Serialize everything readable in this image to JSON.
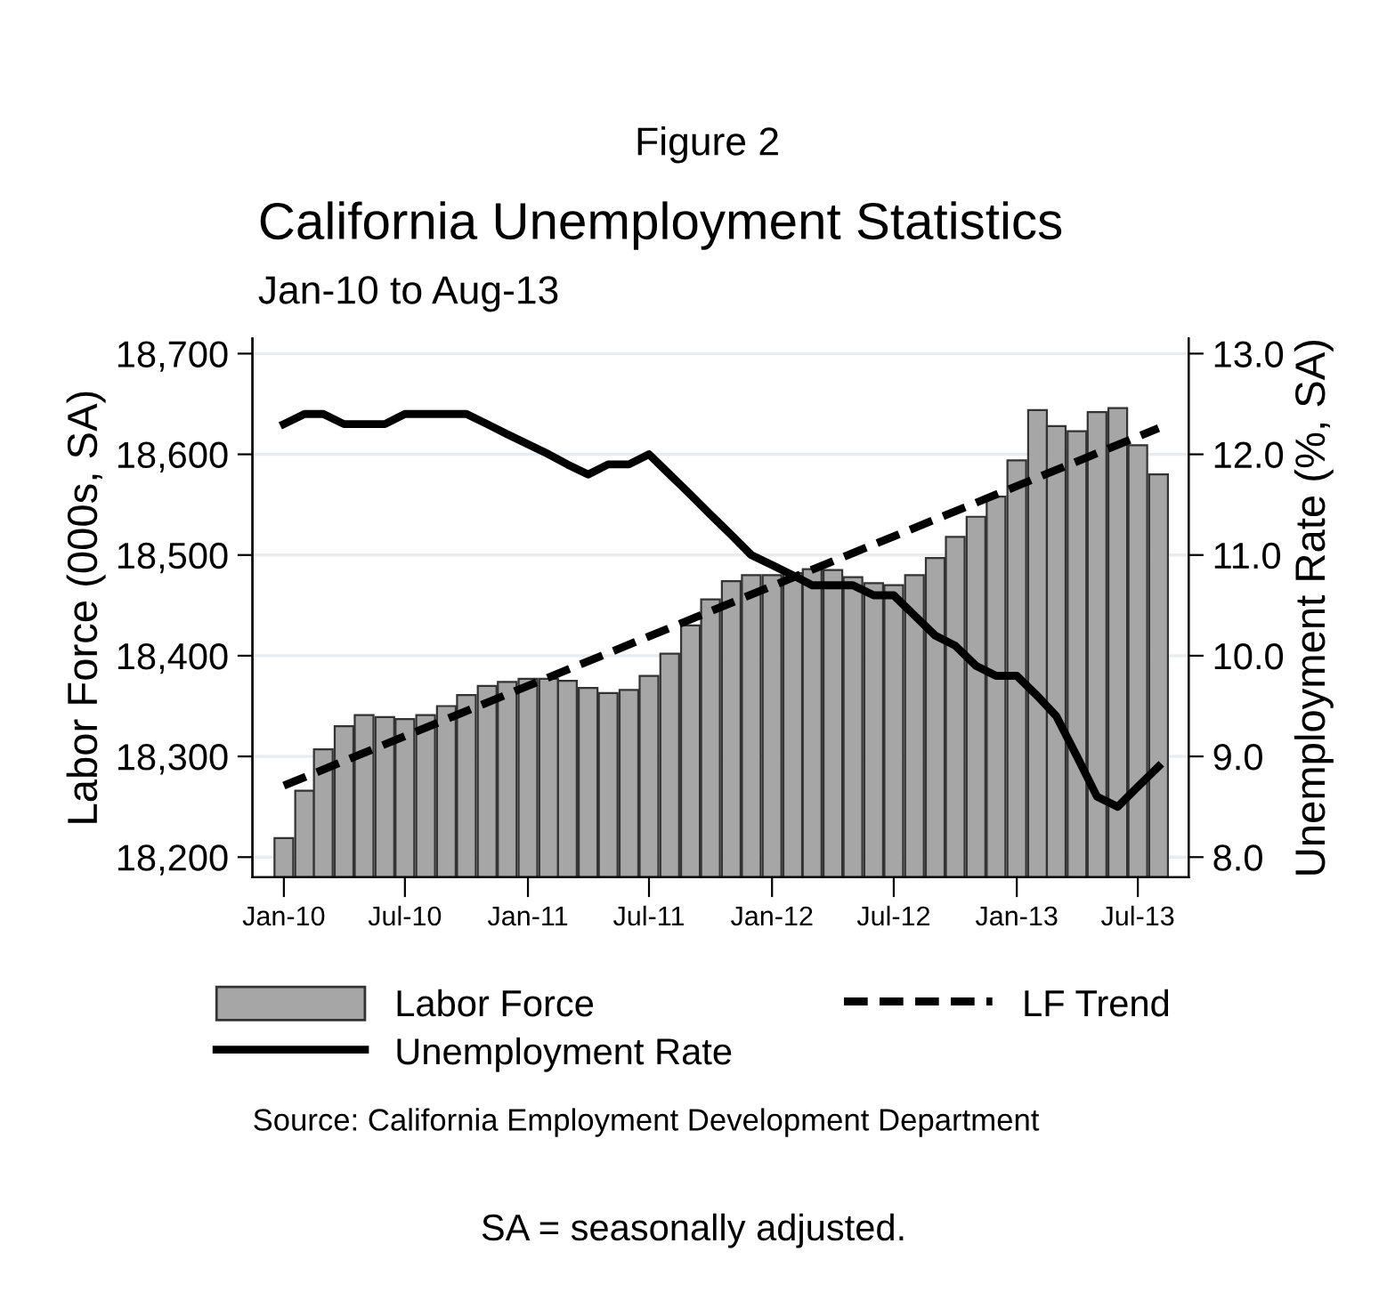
{
  "chart_data": {
    "type": "bar",
    "title": "California Unemployment Statistics",
    "subtitle": "Jan-10 to Aug-13",
    "ylabel": "Labor Force (000s, SA)",
    "y2label": "Unemployment Rate (%, SA)",
    "annotations": [
      "Figure 2",
      "Source: California Employment Development Department",
      "SA = seasonally adjusted."
    ],
    "x": [
      "2010-01",
      "2010-02",
      "2010-03",
      "2010-04",
      "2010-05",
      "2010-06",
      "2010-07",
      "2010-08",
      "2010-09",
      "2010-10",
      "2010-11",
      "2010-12",
      "2011-01",
      "2011-02",
      "2011-03",
      "2011-04",
      "2011-05",
      "2011-06",
      "2011-07",
      "2011-08",
      "2011-09",
      "2011-10",
      "2011-11",
      "2011-12",
      "2012-01",
      "2012-02",
      "2012-03",
      "2012-04",
      "2012-05",
      "2012-06",
      "2012-07",
      "2012-08",
      "2012-09",
      "2012-10",
      "2012-11",
      "2012-12",
      "2013-01",
      "2013-02",
      "2013-03",
      "2013-04",
      "2013-05",
      "2013-06",
      "2013-07",
      "2013-08"
    ],
    "series": [
      {
        "name": "Labor Force",
        "color": "#a6a6a6",
        "values": [
          18219,
          18266,
          18307,
          18330,
          18341,
          18339,
          18337,
          18341,
          18350,
          18361,
          18370,
          18374,
          18377,
          18377,
          18375,
          18368,
          18363,
          18366,
          18380,
          18402,
          18430,
          18456,
          18474,
          18480,
          18480,
          18482,
          18486,
          18485,
          18478,
          18472,
          18470,
          18480,
          18497,
          18518,
          18538,
          18558,
          18594,
          18644,
          18628,
          18623,
          18642,
          18646,
          18609,
          18580
        ]
      },
      {
        "name": "Unemployment Rate",
        "type": "line",
        "axis": "y2",
        "color": "#000000",
        "line_style": "solid",
        "values": [
          12.3,
          12.4,
          12.4,
          12.3,
          12.3,
          12.3,
          12.4,
          12.4,
          12.4,
          12.4,
          12.3,
          12.2,
          12.1,
          12.0,
          11.9,
          11.8,
          11.9,
          11.9,
          12.0,
          11.8,
          11.6,
          11.4,
          11.2,
          11.0,
          10.9,
          10.8,
          10.7,
          10.7,
          10.7,
          10.6,
          10.6,
          10.4,
          10.2,
          10.1,
          9.9,
          9.8,
          9.8,
          9.6,
          9.4,
          9.0,
          8.6,
          8.5,
          8.7,
          8.9
        ]
      },
      {
        "name": "LF Trend",
        "type": "line",
        "color": "#000000",
        "line_style": "dashed",
        "x": [
          "2010-01",
          "2013-08"
        ],
        "values": [
          18271,
          18626
        ]
      }
    ],
    "xlim": [
      "2009-11-15",
      "2013-09-15"
    ],
    "xticks": [
      {
        "value": "2010-01",
        "label": "Jan-10"
      },
      {
        "value": "2010-07",
        "label": "Jul-10"
      },
      {
        "value": "2011-01",
        "label": "Jan-11"
      },
      {
        "value": "2011-07",
        "label": "Jul-11"
      },
      {
        "value": "2012-01",
        "label": "Jan-12"
      },
      {
        "value": "2012-07",
        "label": "Jul-12"
      },
      {
        "value": "2013-01",
        "label": "Jan-13"
      },
      {
        "value": "2013-07",
        "label": "Jul-13"
      }
    ],
    "ylim": [
      18180,
      18715
    ],
    "yticks": [
      {
        "value": 18200,
        "label": "18,200"
      },
      {
        "value": 18300,
        "label": "18,300"
      },
      {
        "value": 18400,
        "label": "18,400"
      },
      {
        "value": 18500,
        "label": "18,500"
      },
      {
        "value": 18600,
        "label": "18,600"
      },
      {
        "value": 18700,
        "label": "18,700"
      }
    ],
    "y2lim": [
      7.8,
      13.15
    ],
    "y2ticks": [
      {
        "value": 8,
        "label": "8.0"
      },
      {
        "value": 9,
        "label": "9.0"
      },
      {
        "value": 10,
        "label": "10.0"
      },
      {
        "value": 11,
        "label": "11.0"
      },
      {
        "value": 12,
        "label": "12.0"
      },
      {
        "value": 13,
        "label": "13.0"
      }
    ],
    "grid": "y",
    "legend": "bottom"
  }
}
